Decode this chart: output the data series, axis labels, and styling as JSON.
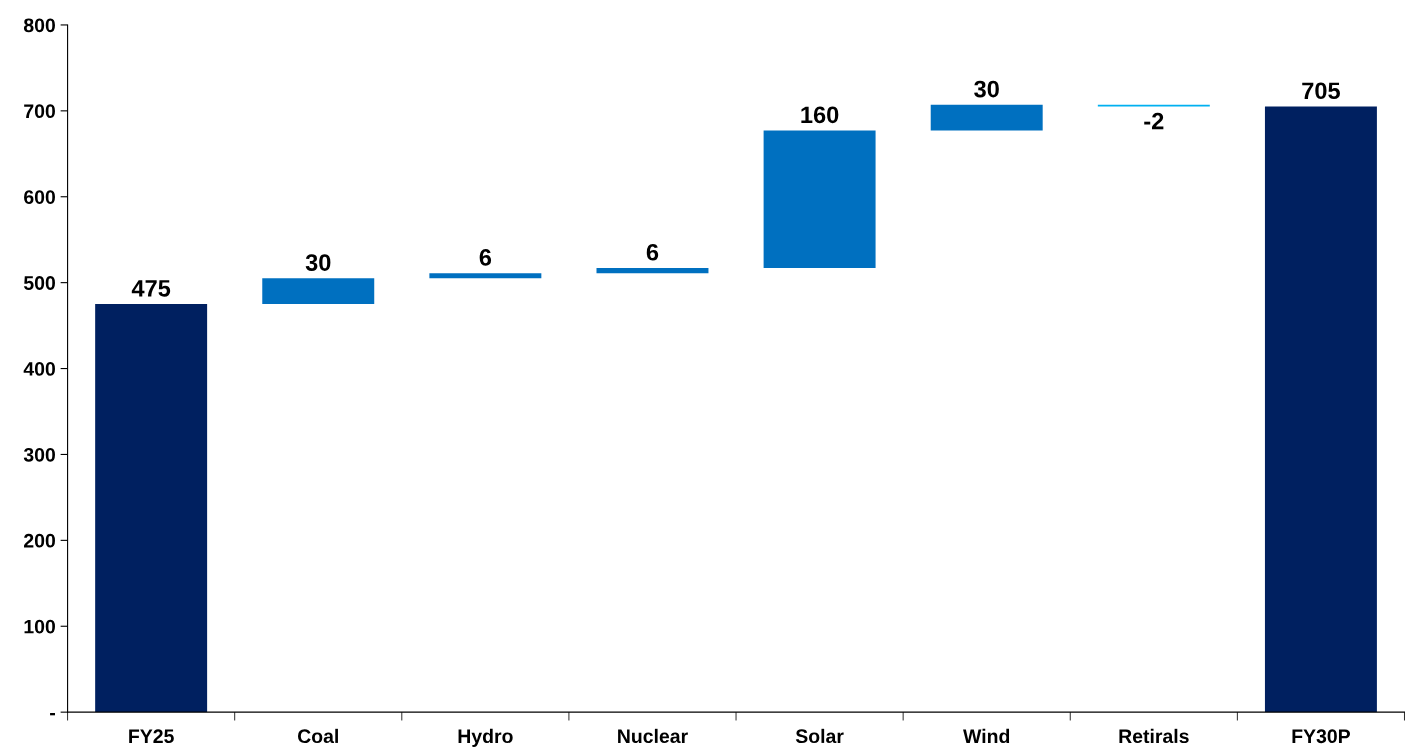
{
  "chart_data": {
    "type": "bar",
    "categories": [
      "FY25",
      "Coal",
      "Hydro",
      "Nuclear",
      "Solar",
      "Wind",
      "Retirals",
      "FY30P"
    ],
    "values": [
      475,
      30,
      6,
      6,
      160,
      30,
      -2,
      705
    ],
    "base": [
      0,
      475,
      505,
      511,
      517,
      677,
      707,
      0
    ],
    "colors": [
      "#002060",
      "#0070c0",
      "#0070c0",
      "#0070c0",
      "#0070c0",
      "#0070c0",
      "#00b0f0",
      "#002060"
    ],
    "ylim": [
      0,
      800
    ],
    "yticks": [
      {
        "value": 0,
        "label": "-"
      },
      100,
      200,
      300,
      400,
      500,
      600,
      700,
      800
    ],
    "data_labels": true,
    "grid": false,
    "legend": false
  }
}
